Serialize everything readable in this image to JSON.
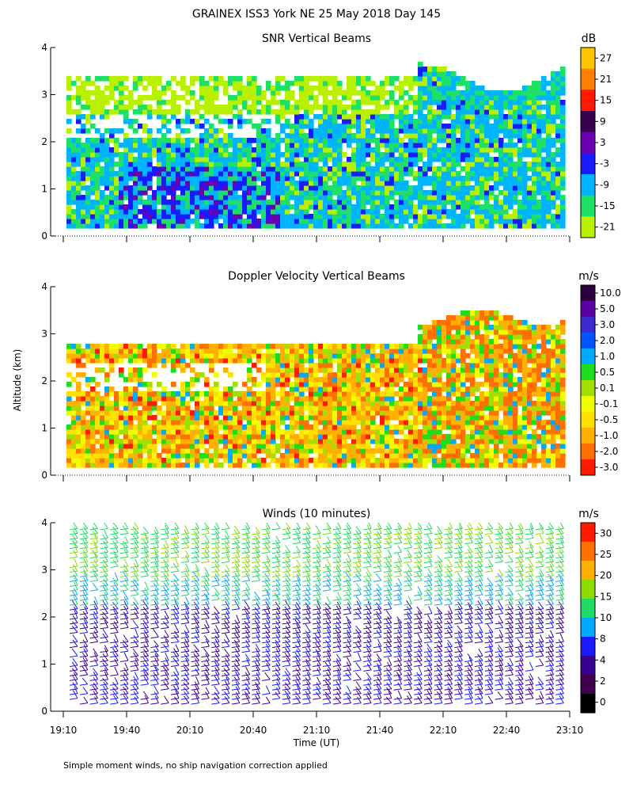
{
  "figure": {
    "title": "GRAINEX ISS3 York NE  25 May 2018 Day 145",
    "ylabel": "Altitude (km)",
    "xlabel": "Time (UT)",
    "footnote": "Simple moment winds, no ship navigation correction applied"
  },
  "chart_data": [
    {
      "type": "heatmap",
      "title": "SNR Vertical Beams",
      "units": "dB",
      "xlim": [
        "19:10",
        "23:10"
      ],
      "ylim": [
        0,
        4
      ],
      "yticks": [
        0,
        1,
        2,
        3,
        4
      ],
      "colorbar": {
        "labels": [
          "27",
          "21",
          "15",
          "9",
          "3",
          "-3",
          "-9",
          "-15",
          "-21"
        ],
        "colors": [
          "#ffc400",
          "#ff8000",
          "#ff1a00",
          "#3a0050",
          "#6a00b0",
          "#1a1aff",
          "#00b4ff",
          "#1ee066",
          "#b8f000"
        ]
      }
    },
    {
      "type": "heatmap",
      "title": "Doppler Velocity Vertical Beams",
      "units": "m/s",
      "xlim": [
        "19:10",
        "23:10"
      ],
      "ylim": [
        0,
        4
      ],
      "yticks": [
        0,
        1,
        2,
        3,
        4
      ],
      "colorbar": {
        "labels": [
          "10.0",
          "5.0",
          "3.0",
          "2.0",
          "1.0",
          "0.5",
          "0.1",
          "-0.1",
          "-0.5",
          "-1.0",
          "-2.0",
          "-3.0"
        ],
        "colors": [
          "#2a0040",
          "#5a00a0",
          "#3a2ad0",
          "#0055ff",
          "#00aaff",
          "#1edc1e",
          "#a0e000",
          "#f0ff00",
          "#ffe000",
          "#ffb000",
          "#ff7000",
          "#ff1a00"
        ]
      }
    },
    {
      "type": "wind barbs",
      "title": "Winds (10 minutes)",
      "units": "m/s",
      "xlim": [
        "19:10",
        "23:10"
      ],
      "ylim": [
        0,
        4
      ],
      "yticks": [
        0,
        1,
        2,
        3,
        4
      ],
      "xticks": [
        "19:10",
        "19:40",
        "20:10",
        "20:40",
        "21:10",
        "21:40",
        "22:10",
        "22:40",
        "23:10"
      ],
      "colorbar": {
        "labels": [
          "30",
          "25",
          "20",
          "15",
          "10",
          "8",
          "4",
          "2",
          "0"
        ],
        "colors": [
          "#ff1a00",
          "#ff7000",
          "#ffb000",
          "#8cdc00",
          "#1edc66",
          "#00aaff",
          "#1a1aff",
          "#3a0090",
          "#400050",
          "#000000"
        ]
      }
    }
  ],
  "panels": [
    {
      "title": "SNR Vertical Beams",
      "units": "dB"
    },
    {
      "title": "Doppler Velocity Vertical Beams",
      "units": "m/s"
    },
    {
      "title": "Winds (10 minutes)",
      "units": "m/s"
    }
  ]
}
